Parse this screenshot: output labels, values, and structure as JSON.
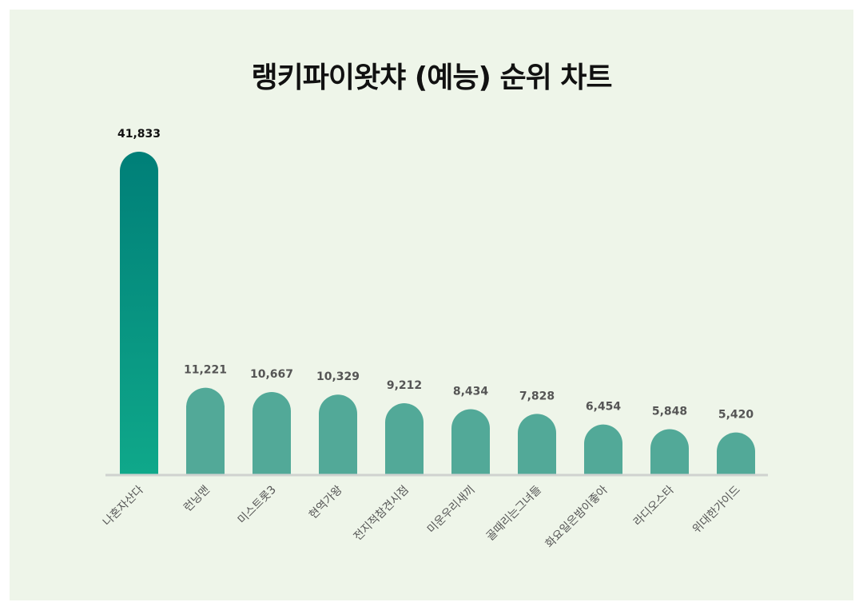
{
  "chart_data": {
    "type": "bar",
    "title": "랭키파이왓챠 (예능) 순위 차트",
    "categories": [
      "나혼자산다",
      "런닝맨",
      "미스트롯3",
      "현역가왕",
      "전지적참견시점",
      "미운우리새끼",
      "골때리는그녀들",
      "화요일은밤이좋아",
      "라디오스타",
      "위대한가이드"
    ],
    "values": [
      41833,
      11221,
      10667,
      10329,
      9212,
      8434,
      7828,
      6454,
      5848,
      5420
    ],
    "value_labels": [
      "41,833",
      "11,221",
      "10,667",
      "10,329",
      "9,212",
      "8,434",
      "7,828",
      "6,454",
      "5,848",
      "5,420"
    ],
    "xlabel": "",
    "ylabel": "",
    "grid": false,
    "colors": {
      "highlight_top": "#007f78",
      "highlight_bottom": "#0fa88a",
      "bar": "#52a998",
      "baseline": "#cfd2cf",
      "highlight_label": "#111111",
      "label": "#555555",
      "category": "#555555"
    }
  }
}
